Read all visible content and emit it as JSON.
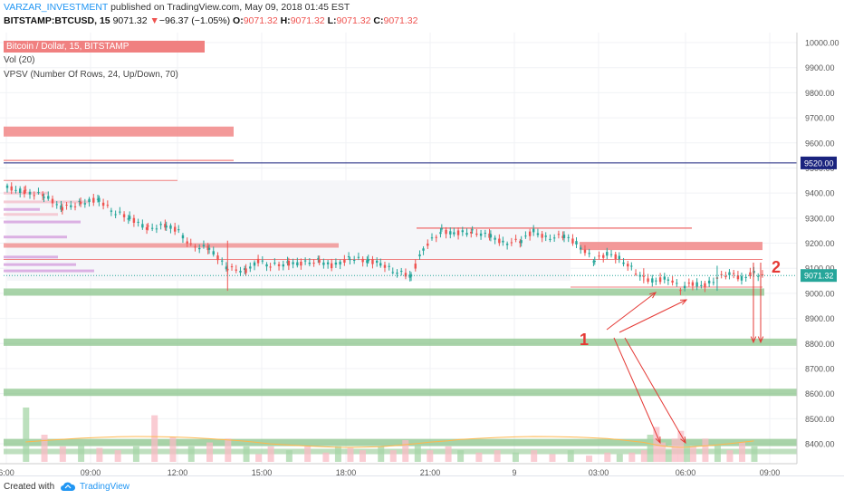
{
  "header": {
    "author": "VARZAR_INVESTMENT",
    "published": "published on TradingView.com, May 09, 2018 01:45 EST",
    "symbol": "BITSTAMP:BTCUSD, 15",
    "last": "9071.32",
    "arrow": "▼",
    "change": "−96.37 (−1.05%)",
    "o_label": "O:",
    "o_value": "9071.32",
    "h_label": "H:",
    "h_value": "9071.32",
    "l_label": "L:",
    "l_value": "9071.32",
    "c_label": "C:",
    "c_value": "9071.32"
  },
  "legend": {
    "symbol": "Bitcoin / Dollar, 15, BITSTAMP",
    "vol": "Vol (20)",
    "vpsv": "VPSV (Number Of Rows, 24, Up/Down, 70)"
  },
  "footer": {
    "created": "Created with",
    "brand": "TradingView"
  },
  "colors": {
    "up": "#26a69a",
    "down": "#ef5350",
    "hline": "#1a237e",
    "zone_green": "#8bc48b",
    "zone_red": "#f08080",
    "annotation": "#e53935"
  },
  "chart_data": {
    "type": "candlestick",
    "ylim": [
      8340,
      10040
    ],
    "y_ticks": [
      "10000.00",
      "9900.00",
      "9800.00",
      "9700.00",
      "9600.00",
      "9500.00",
      "9400.00",
      "9300.00",
      "9200.00",
      "9100.00",
      "9000.00",
      "8900.00",
      "8800.00",
      "8700.00",
      "8600.00",
      "8500.00",
      "8400.00"
    ],
    "x_ticks": [
      "6:00",
      "09:00",
      "12:00",
      "15:00",
      "18:00",
      "21:00",
      "9",
      "03:00",
      "06:00",
      "09:00"
    ],
    "price_marker": "9071.32",
    "level_marker": "9520.00",
    "annotations": [
      "1",
      "2"
    ],
    "price_path": [
      [
        0,
        9420
      ],
      [
        3,
        9405
      ],
      [
        6,
        9390
      ],
      [
        9,
        9340
      ],
      [
        12,
        9360
      ],
      [
        15,
        9375
      ],
      [
        17,
        9330
      ],
      [
        20,
        9300
      ],
      [
        23,
        9260
      ],
      [
        26,
        9270
      ],
      [
        28,
        9250
      ],
      [
        30,
        9190
      ],
      [
        33,
        9180
      ],
      [
        36,
        9100
      ],
      [
        39,
        9090
      ],
      [
        41,
        9130
      ],
      [
        43,
        9110
      ],
      [
        46,
        9120
      ],
      [
        48,
        9120
      ],
      [
        51,
        9130
      ],
      [
        53,
        9110
      ],
      [
        56,
        9140
      ],
      [
        59,
        9130
      ],
      [
        61,
        9120
      ],
      [
        63,
        9090
      ],
      [
        66,
        9070
      ],
      [
        68,
        9180
      ],
      [
        71,
        9250
      ],
      [
        73,
        9240
      ],
      [
        76,
        9245
      ],
      [
        79,
        9230
      ],
      [
        81,
        9200
      ],
      [
        84,
        9210
      ],
      [
        86,
        9250
      ],
      [
        88,
        9220
      ],
      [
        91,
        9230
      ],
      [
        93,
        9200
      ],
      [
        96,
        9130
      ],
      [
        98,
        9160
      ],
      [
        100,
        9140
      ],
      [
        102,
        9100
      ],
      [
        104,
        9060
      ],
      [
        106,
        9050
      ],
      [
        108,
        9060
      ],
      [
        110,
        9020
      ],
      [
        112,
        9040
      ],
      [
        114,
        9030
      ],
      [
        116,
        9060
      ],
      [
        118,
        9080
      ],
      [
        120,
        9060
      ],
      [
        122,
        9080
      ],
      [
        124,
        9071
      ]
    ],
    "x_data_min": 0,
    "x_data_max": 124,
    "volume": [
      [
        3,
        70
      ],
      [
        6,
        35
      ],
      [
        9,
        20
      ],
      [
        12,
        25
      ],
      [
        15,
        18
      ],
      [
        18,
        15
      ],
      [
        21,
        20
      ],
      [
        24,
        60
      ],
      [
        27,
        32
      ],
      [
        30,
        20
      ],
      [
        33,
        25
      ],
      [
        36,
        30
      ],
      [
        39,
        20
      ],
      [
        41,
        10
      ],
      [
        43,
        20
      ],
      [
        46,
        15
      ],
      [
        49,
        20
      ],
      [
        52,
        12
      ],
      [
        54,
        20
      ],
      [
        56,
        18
      ],
      [
        58,
        15
      ],
      [
        61,
        20
      ],
      [
        63,
        15
      ],
      [
        65,
        28
      ],
      [
        67,
        22
      ],
      [
        69,
        15
      ],
      [
        72,
        20
      ],
      [
        74,
        15
      ],
      [
        77,
        12
      ],
      [
        80,
        15
      ],
      [
        83,
        12
      ],
      [
        86,
        15
      ],
      [
        89,
        10
      ],
      [
        92,
        15
      ],
      [
        95,
        8
      ],
      [
        98,
        12
      ],
      [
        100,
        10
      ],
      [
        102,
        12
      ],
      [
        104,
        15
      ],
      [
        105,
        35
      ],
      [
        106,
        45
      ],
      [
        107,
        25
      ],
      [
        108,
        15
      ],
      [
        109,
        30
      ],
      [
        110,
        40
      ],
      [
        111,
        25
      ],
      [
        112,
        20
      ],
      [
        114,
        30
      ],
      [
        116,
        25
      ],
      [
        118,
        15
      ],
      [
        120,
        25
      ],
      [
        122,
        20
      ]
    ],
    "volume_scale": 140
  }
}
